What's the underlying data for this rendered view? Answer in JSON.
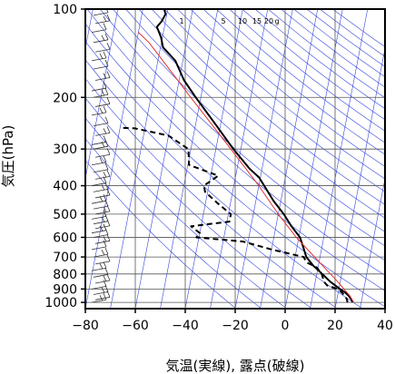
{
  "chart_data": {
    "type": "line",
    "title": "",
    "xlabel": "気温(実線), 露点(破線)",
    "ylabel": "気圧(hPa)",
    "xlim": [
      -80,
      40
    ],
    "ylim": [
      1050,
      100
    ],
    "y_scale": "log",
    "grid": true,
    "x_ticks": [
      -80,
      -60,
      -40,
      -20,
      0,
      20,
      40
    ],
    "x_tick_labels": [
      "−80",
      "−60",
      "−40",
      "−20",
      "0",
      "20",
      "40"
    ],
    "y_ticks": [
      100,
      200,
      300,
      400,
      500,
      600,
      700,
      800,
      900,
      1000
    ],
    "y_tick_labels": [
      "100",
      "200",
      "300",
      "400",
      "500",
      "600",
      "700",
      "800",
      "900",
      "1000"
    ],
    "mixing_ratio_labels": [
      {
        "text": "1",
        "value": 1
      },
      {
        "text": "5",
        "value": 5
      },
      {
        "text": "10",
        "value": 10
      },
      {
        "text": "15",
        "value": 15
      },
      {
        "text": "20",
        "value": 20
      },
      {
        "text": "g",
        "value": 20
      }
    ],
    "series": [
      {
        "key": "temperature",
        "style": "solid",
        "color": "#000000",
        "points": [
          {
            "p": 1000,
            "t": 26.5
          },
          {
            "p": 975,
            "t": 25.8
          },
          {
            "p": 950,
            "t": 24.5
          },
          {
            "p": 925,
            "t": 22.8
          },
          {
            "p": 900,
            "t": 20.5
          },
          {
            "p": 875,
            "t": 18.3
          },
          {
            "p": 850,
            "t": 16.0
          },
          {
            "p": 800,
            "t": 12.2
          },
          {
            "p": 750,
            "t": 8.0
          },
          {
            "p": 700,
            "t": 4.5
          },
          {
            "p": 650,
            "t": 2.6
          },
          {
            "p": 600,
            "t": 0.5
          },
          {
            "p": 550,
            "t": -3.8
          },
          {
            "p": 500,
            "t": -7.8
          },
          {
            "p": 450,
            "t": -13.0
          },
          {
            "p": 400,
            "t": -17.8
          },
          {
            "p": 375,
            "t": -20.5
          },
          {
            "p": 350,
            "t": -25.0
          },
          {
            "p": 300,
            "t": -33.0
          },
          {
            "p": 250,
            "t": -41.5
          },
          {
            "p": 200,
            "t": -52.0
          },
          {
            "p": 175,
            "t": -58.0
          },
          {
            "p": 150,
            "t": -63.0
          },
          {
            "p": 135,
            "t": -69.0
          },
          {
            "p": 125,
            "t": -70.5
          },
          {
            "p": 115,
            "t": -73.0
          },
          {
            "p": 110,
            "t": -71.5
          },
          {
            "p": 104,
            "t": -70.5
          },
          {
            "p": 100,
            "t": -71.5
          }
        ]
      },
      {
        "key": "dewpoint",
        "style": "dashed",
        "color": "#000000",
        "points": [
          {
            "p": 1000,
            "t": 24.5
          },
          {
            "p": 975,
            "t": 24.0
          },
          {
            "p": 950,
            "t": 23.0
          },
          {
            "p": 925,
            "t": 21.5
          },
          {
            "p": 900,
            "t": 19.5
          },
          {
            "p": 875,
            "t": 15.0
          },
          {
            "p": 850,
            "t": 13.5
          },
          {
            "p": 800,
            "t": 12.0
          },
          {
            "p": 760,
            "t": 9.5
          },
          {
            "p": 730,
            "t": 5.0
          },
          {
            "p": 700,
            "t": 3.5
          },
          {
            "p": 660,
            "t": -10.0
          },
          {
            "p": 620,
            "t": -22.0
          },
          {
            "p": 600,
            "t": -41.0
          },
          {
            "p": 580,
            "t": -40.0
          },
          {
            "p": 550,
            "t": -44.0
          },
          {
            "p": 530,
            "t": -29.0
          },
          {
            "p": 500,
            "t": -29.0
          },
          {
            "p": 460,
            "t": -35.0
          },
          {
            "p": 420,
            "t": -41.0
          },
          {
            "p": 400,
            "t": -42.0
          },
          {
            "p": 370,
            "t": -37.0
          },
          {
            "p": 340,
            "t": -49.5
          },
          {
            "p": 300,
            "t": -51.0
          },
          {
            "p": 270,
            "t": -60.0
          },
          {
            "p": 255,
            "t": -74.0
          },
          {
            "p": 254,
            "t": -80.0
          }
        ]
      },
      {
        "key": "parcel",
        "style": "solid",
        "color": "#e03030",
        "points": [
          {
            "p": 1000,
            "t": 27.0
          },
          {
            "p": 950,
            "t": 25.0
          },
          {
            "p": 925,
            "t": 23.5
          },
          {
            "p": 850,
            "t": 19.0
          },
          {
            "p": 800,
            "t": 15.5
          },
          {
            "p": 700,
            "t": 7.8
          },
          {
            "p": 600,
            "t": -1.0
          },
          {
            "p": 500,
            "t": -10.0
          },
          {
            "p": 400,
            "t": -20.0
          },
          {
            "p": 300,
            "t": -34.0
          },
          {
            "p": 250,
            "t": -43.0
          },
          {
            "p": 200,
            "t": -54.0
          },
          {
            "p": 150,
            "t": -68.0
          },
          {
            "p": 130,
            "t": -75.0
          },
          {
            "p": 120,
            "t": -80.0
          }
        ]
      }
    ]
  }
}
